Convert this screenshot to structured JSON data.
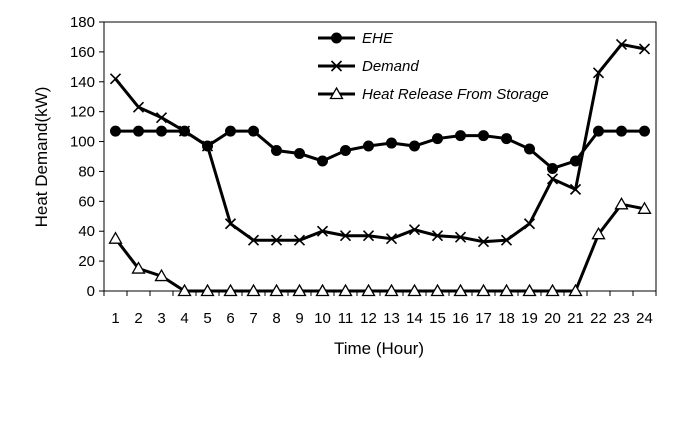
{
  "chart_data": {
    "type": "line",
    "title": "",
    "xlabel": "Time (Hour)",
    "ylabel": "Heat Demand(kW)",
    "ylim": [
      0,
      180
    ],
    "yticks": [
      0,
      20,
      40,
      60,
      80,
      100,
      120,
      140,
      160,
      180
    ],
    "x": [
      1,
      2,
      3,
      4,
      5,
      6,
      7,
      8,
      9,
      10,
      11,
      12,
      13,
      14,
      15,
      16,
      17,
      18,
      19,
      20,
      21,
      22,
      23,
      24
    ],
    "grid": false,
    "legend_position": "top-center",
    "series": [
      {
        "name": "EHE",
        "marker": "circle",
        "color": "#000000",
        "values": [
          107,
          107,
          107,
          107,
          97,
          107,
          107,
          94,
          92,
          87,
          94,
          97,
          99,
          97,
          102,
          104,
          104,
          102,
          95,
          82,
          87,
          107,
          107,
          107
        ]
      },
      {
        "name": "Demand",
        "marker": "x",
        "color": "#000000",
        "values": [
          142,
          123,
          116,
          107,
          97,
          45,
          34,
          34,
          34,
          40,
          37,
          37,
          35,
          41,
          37,
          36,
          33,
          34,
          45,
          75,
          68,
          146,
          165,
          162
        ]
      },
      {
        "name": "Heat Release From Storage",
        "marker": "triangle",
        "color": "#000000",
        "values": [
          35,
          15,
          10,
          0,
          0,
          0,
          0,
          0,
          0,
          0,
          0,
          0,
          0,
          0,
          0,
          0,
          0,
          0,
          0,
          0,
          0,
          38,
          58,
          55
        ]
      }
    ]
  }
}
